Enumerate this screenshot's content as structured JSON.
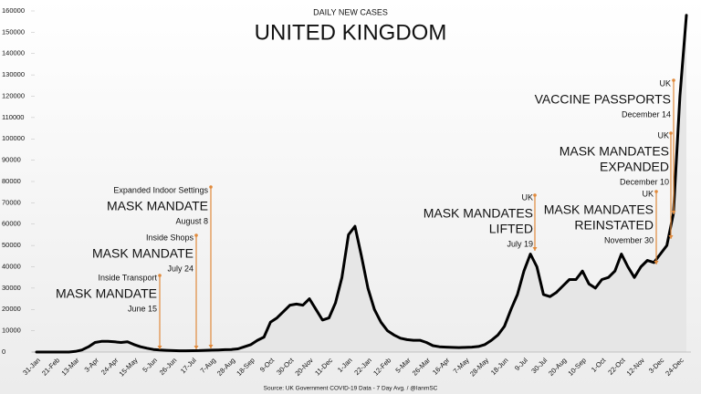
{
  "chart_data": {
    "type": "line",
    "title": "DAILY NEW CASES",
    "subtitle": "UNITED KINGDOM",
    "source": "Source: UK Government COVID-19 Data - 7 Day Avg. / @IanmSC",
    "categories": [
      "31-Jan",
      null,
      null,
      "21-Feb",
      null,
      null,
      "13-Mar",
      null,
      null,
      "3-Apr",
      null,
      null,
      "24-Apr",
      null,
      null,
      "15-May",
      null,
      null,
      "5-Jun",
      null,
      null,
      "26-Jun",
      null,
      null,
      "17-Jul",
      null,
      null,
      "7-Aug",
      null,
      null,
      "28-Aug",
      null,
      null,
      "18-Sep",
      null,
      null,
      "9-Oct",
      null,
      null,
      "30-Oct",
      null,
      null,
      "20-Nov",
      null,
      null,
      "11-Dec",
      null,
      null,
      "1-Jan",
      null,
      null,
      "22-Jan",
      null,
      null,
      "12-Feb",
      null,
      null,
      "5-Mar",
      null,
      null,
      "26-Mar",
      null,
      null,
      "16-Apr",
      null,
      null,
      "7-May",
      null,
      null,
      "28-May",
      null,
      null,
      "18-Jun",
      null,
      null,
      "9-Jul",
      null,
      null,
      "30-Jul",
      null,
      null,
      "20-Aug",
      null,
      null,
      "10-Sep",
      null,
      null,
      "1-Oct",
      null,
      null,
      "22-Oct",
      null,
      null,
      "12-Nov",
      null,
      null,
      "3-Dec",
      null,
      null,
      "24-Dec",
      null
    ],
    "values": [
      0,
      0,
      0,
      0,
      0,
      0,
      300,
      1000,
      2500,
      4500,
      5000,
      5000,
      4800,
      4500,
      4800,
      3500,
      2500,
      1800,
      1200,
      1000,
      800,
      700,
      600,
      600,
      650,
      700,
      800,
      900,
      1000,
      1100,
      1200,
      1500,
      2500,
      3500,
      5500,
      7000,
      14000,
      16000,
      19000,
      22000,
      22500,
      22000,
      25000,
      20000,
      15000,
      16000,
      23000,
      35000,
      55000,
      59000,
      45000,
      30000,
      20000,
      14000,
      10000,
      8000,
      6500,
      5800,
      5500,
      5500,
      4500,
      3000,
      2500,
      2300,
      2200,
      2100,
      2200,
      2300,
      2600,
      3500,
      5500,
      8000,
      12000,
      20000,
      27000,
      38000,
      46000,
      40000,
      27000,
      26000,
      28000,
      31000,
      34000,
      34000,
      38000,
      32000,
      30000,
      34000,
      35000,
      38000,
      46000,
      40000,
      35000,
      40000,
      43000,
      42000,
      46000,
      50000,
      65000,
      120000,
      158000
    ],
    "color": "#000000",
    "area_color": "#e6e6e6",
    "annotation_color": "#e08a3c",
    "ylim": [
      0,
      160000
    ],
    "yticks": [
      0,
      10000,
      20000,
      30000,
      40000,
      50000,
      60000,
      70000,
      80000,
      90000,
      100000,
      110000,
      120000,
      130000,
      140000,
      150000,
      160000
    ],
    "annotations": [
      {
        "context": "Inside Transport",
        "headline": [
          "MASK MANDATE"
        ],
        "date": "June 15"
      },
      {
        "context": "Inside Shops",
        "headline": [
          "MASK MANDATE"
        ],
        "date": "July 24"
      },
      {
        "context": "Expanded Indoor Settings",
        "headline": [
          "MASK MANDATE"
        ],
        "date": "August 8"
      },
      {
        "context": "UK",
        "headline": [
          "MASK MANDATES",
          "LIFTED"
        ],
        "date": "July 19"
      },
      {
        "context": "UK",
        "headline": [
          "MASK MANDATES",
          "REINSTATED"
        ],
        "date": "November 30"
      },
      {
        "context": "UK",
        "headline": [
          "MASK MANDATES",
          "EXPANDED"
        ],
        "date": "December 10"
      },
      {
        "context": "UK",
        "headline": [
          "VACCINE PASSPORTS"
        ],
        "date": "December 14"
      }
    ]
  }
}
